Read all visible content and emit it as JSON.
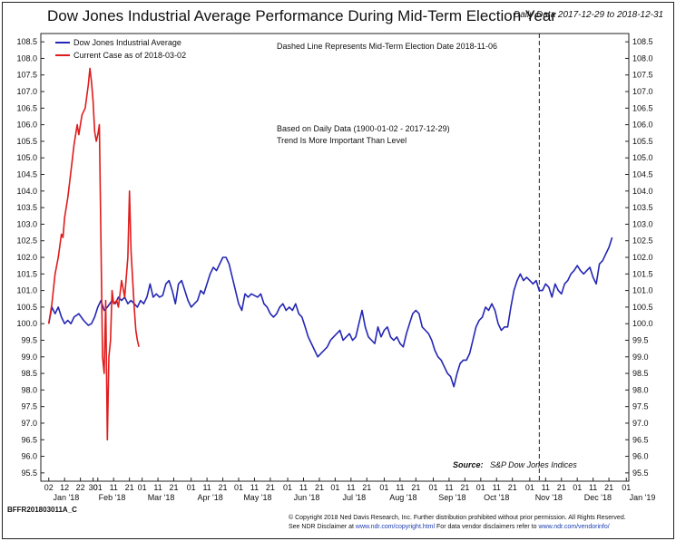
{
  "header": {
    "title": "Dow Jones Industrial Average Performance During Mid-Term Election Year",
    "date_range": "Daily Data 2017-12-29 to 2018-12-31"
  },
  "footer": {
    "code": "BFFR201803011A_C",
    "copyright": "© Copyright 2018 Ned Davis Research, Inc. Further distribution prohibited without prior permission. All Rights Reserved.",
    "disclaimer_prefix": "See NDR Disclaimer at ",
    "disclaimer_link": "www.ndr.com/copyright.html",
    "vendor_prefix": "  For data vendor disclaimers refer to ",
    "vendor_link": "www.ndr.com/vendorinfo/"
  },
  "chart_data": {
    "type": "line",
    "title": "Dow Jones Industrial Average Performance During Mid-Term Election Year",
    "ylim": [
      95.25,
      108.75
    ],
    "y_ticks": [
      95.5,
      96.0,
      96.5,
      97.0,
      97.5,
      98.0,
      98.5,
      99.0,
      99.5,
      100.0,
      100.5,
      101.0,
      101.5,
      102.0,
      102.5,
      103.0,
      103.5,
      104.0,
      104.5,
      105.0,
      105.5,
      106.0,
      106.5,
      107.0,
      107.5,
      108.0,
      108.5
    ],
    "x_range_days": [
      0,
      367
    ],
    "day_ticks": [
      {
        "d": 1,
        "label": "02"
      },
      {
        "d": 11,
        "label": "12"
      },
      {
        "d": 21,
        "label": "22"
      },
      {
        "d": 29,
        "label": "30"
      },
      {
        "d": 32,
        "label": "01"
      },
      {
        "d": 42,
        "label": "11"
      },
      {
        "d": 52,
        "label": "21"
      },
      {
        "d": 60,
        "label": "01"
      },
      {
        "d": 70,
        "label": "11"
      },
      {
        "d": 80,
        "label": "21"
      },
      {
        "d": 91,
        "label": "01"
      },
      {
        "d": 101,
        "label": "11"
      },
      {
        "d": 111,
        "label": "21"
      },
      {
        "d": 121,
        "label": "01"
      },
      {
        "d": 131,
        "label": "11"
      },
      {
        "d": 141,
        "label": "21"
      },
      {
        "d": 152,
        "label": "01"
      },
      {
        "d": 162,
        "label": "11"
      },
      {
        "d": 172,
        "label": "21"
      },
      {
        "d": 182,
        "label": "01"
      },
      {
        "d": 192,
        "label": "11"
      },
      {
        "d": 202,
        "label": "21"
      },
      {
        "d": 213,
        "label": "01"
      },
      {
        "d": 223,
        "label": "11"
      },
      {
        "d": 233,
        "label": "21"
      },
      {
        "d": 244,
        "label": "01"
      },
      {
        "d": 254,
        "label": "11"
      },
      {
        "d": 264,
        "label": "21"
      },
      {
        "d": 274,
        "label": "01"
      },
      {
        "d": 284,
        "label": "11"
      },
      {
        "d": 294,
        "label": "21"
      },
      {
        "d": 305,
        "label": "01"
      },
      {
        "d": 315,
        "label": "11"
      },
      {
        "d": 325,
        "label": "21"
      },
      {
        "d": 335,
        "label": "01"
      },
      {
        "d": 345,
        "label": "11"
      },
      {
        "d": 355,
        "label": "21"
      },
      {
        "d": 366,
        "label": "01"
      }
    ],
    "day_ticks_text": "02 12 22 30 01 11 21 01 11 21 01 11 21 01 11 21 01 11 21 01 11 21 01 11 21 01 11 21 01 11 21 01 11 21 01 11 21 01",
    "month_labels": [
      {
        "d": 12,
        "label": "Jan '18"
      },
      {
        "d": 41,
        "label": "Feb '18"
      },
      {
        "d": 72,
        "label": "Mar '18"
      },
      {
        "d": 103,
        "label": "Apr '18"
      },
      {
        "d": 133,
        "label": "May '18"
      },
      {
        "d": 164,
        "label": "Jun '18"
      },
      {
        "d": 194,
        "label": "Jul '18"
      },
      {
        "d": 225,
        "label": "Aug '18"
      },
      {
        "d": 256,
        "label": "Sep '18"
      },
      {
        "d": 284,
        "label": "Oct '18"
      },
      {
        "d": 317,
        "label": "Nov '18"
      },
      {
        "d": 348,
        "label": "Dec '18"
      },
      {
        "d": 379,
        "label": "Jan '19"
      }
    ],
    "month_labels_text": "Jan '18 Feb '18 Mar '18 Apr '18 May '18 Jun '18 Jul '18 Aug '18 Sep '18 Oct '18 Nov '18 Dec '18 Jan '19",
    "series": [
      {
        "name": "Dow Jones Industrial Average",
        "color": "#2426b4",
        "points": [
          [
            1,
            100.0
          ],
          [
            3,
            100.5
          ],
          [
            5,
            100.3
          ],
          [
            7,
            100.5
          ],
          [
            9,
            100.2
          ],
          [
            11,
            100.0
          ],
          [
            13,
            100.1
          ],
          [
            15,
            100.0
          ],
          [
            17,
            100.2
          ],
          [
            20,
            100.3
          ],
          [
            23,
            100.1
          ],
          [
            26,
            99.95
          ],
          [
            28,
            100.0
          ],
          [
            30,
            100.2
          ],
          [
            32,
            100.5
          ],
          [
            34,
            100.7
          ],
          [
            36,
            100.4
          ],
          [
            38,
            100.5
          ],
          [
            41,
            100.7
          ],
          [
            43,
            100.6
          ],
          [
            45,
            100.8
          ],
          [
            47,
            100.7
          ],
          [
            49,
            100.8
          ],
          [
            51,
            100.6
          ],
          [
            53,
            100.7
          ],
          [
            55,
            100.6
          ],
          [
            57,
            100.5
          ],
          [
            59,
            100.7
          ],
          [
            61,
            100.6
          ],
          [
            63,
            100.8
          ],
          [
            65,
            101.2
          ],
          [
            67,
            100.8
          ],
          [
            69,
            100.9
          ],
          [
            71,
            100.8
          ],
          [
            73,
            100.85
          ],
          [
            75,
            101.2
          ],
          [
            77,
            101.3
          ],
          [
            79,
            101.0
          ],
          [
            81,
            100.6
          ],
          [
            83,
            101.2
          ],
          [
            85,
            101.3
          ],
          [
            87,
            101.0
          ],
          [
            89,
            100.7
          ],
          [
            91,
            100.5
          ],
          [
            93,
            100.6
          ],
          [
            95,
            100.7
          ],
          [
            97,
            101.0
          ],
          [
            99,
            100.9
          ],
          [
            101,
            101.2
          ],
          [
            103,
            101.5
          ],
          [
            105,
            101.7
          ],
          [
            107,
            101.6
          ],
          [
            109,
            101.8
          ],
          [
            111,
            102.0
          ],
          [
            113,
            102.0
          ],
          [
            115,
            101.8
          ],
          [
            117,
            101.4
          ],
          [
            119,
            101.0
          ],
          [
            121,
            100.6
          ],
          [
            123,
            100.4
          ],
          [
            125,
            100.9
          ],
          [
            127,
            100.8
          ],
          [
            129,
            100.9
          ],
          [
            131,
            100.85
          ],
          [
            133,
            100.8
          ],
          [
            135,
            100.9
          ],
          [
            137,
            100.6
          ],
          [
            139,
            100.5
          ],
          [
            141,
            100.3
          ],
          [
            143,
            100.2
          ],
          [
            145,
            100.3
          ],
          [
            147,
            100.5
          ],
          [
            149,
            100.6
          ],
          [
            151,
            100.4
          ],
          [
            153,
            100.5
          ],
          [
            155,
            100.4
          ],
          [
            157,
            100.6
          ],
          [
            159,
            100.3
          ],
          [
            161,
            100.2
          ],
          [
            163,
            99.9
          ],
          [
            165,
            99.6
          ],
          [
            167,
            99.4
          ],
          [
            169,
            99.2
          ],
          [
            171,
            99.0
          ],
          [
            173,
            99.1
          ],
          [
            175,
            99.2
          ],
          [
            177,
            99.3
          ],
          [
            179,
            99.5
          ],
          [
            181,
            99.6
          ],
          [
            183,
            99.7
          ],
          [
            185,
            99.8
          ],
          [
            187,
            99.5
          ],
          [
            189,
            99.6
          ],
          [
            191,
            99.7
          ],
          [
            193,
            99.5
          ],
          [
            195,
            99.6
          ],
          [
            197,
            100.0
          ],
          [
            199,
            100.4
          ],
          [
            201,
            99.9
          ],
          [
            203,
            99.6
          ],
          [
            205,
            99.5
          ],
          [
            207,
            99.4
          ],
          [
            209,
            99.9
          ],
          [
            211,
            99.6
          ],
          [
            213,
            99.8
          ],
          [
            215,
            99.9
          ],
          [
            217,
            99.6
          ],
          [
            219,
            99.5
          ],
          [
            221,
            99.6
          ],
          [
            223,
            99.4
          ],
          [
            225,
            99.3
          ],
          [
            227,
            99.7
          ],
          [
            229,
            100.0
          ],
          [
            231,
            100.3
          ],
          [
            233,
            100.4
          ],
          [
            235,
            100.3
          ],
          [
            237,
            99.9
          ],
          [
            239,
            99.8
          ],
          [
            241,
            99.7
          ],
          [
            243,
            99.5
          ],
          [
            245,
            99.2
          ],
          [
            247,
            99.0
          ],
          [
            249,
            98.9
          ],
          [
            251,
            98.7
          ],
          [
            253,
            98.5
          ],
          [
            255,
            98.4
          ],
          [
            257,
            98.1
          ],
          [
            259,
            98.5
          ],
          [
            261,
            98.8
          ],
          [
            263,
            98.9
          ],
          [
            265,
            98.9
          ],
          [
            267,
            99.1
          ],
          [
            269,
            99.5
          ],
          [
            271,
            99.9
          ],
          [
            273,
            100.1
          ],
          [
            275,
            100.2
          ],
          [
            277,
            100.5
          ],
          [
            279,
            100.4
          ],
          [
            281,
            100.6
          ],
          [
            283,
            100.4
          ],
          [
            285,
            100.0
          ],
          [
            287,
            99.8
          ],
          [
            289,
            99.9
          ],
          [
            291,
            99.9
          ],
          [
            293,
            100.5
          ],
          [
            295,
            101.0
          ],
          [
            297,
            101.3
          ],
          [
            299,
            101.5
          ],
          [
            301,
            101.3
          ],
          [
            303,
            101.4
          ],
          [
            305,
            101.3
          ],
          [
            307,
            101.2
          ],
          [
            309,
            101.3
          ],
          [
            311,
            101.0
          ],
          [
            313,
            101.0
          ],
          [
            315,
            101.2
          ],
          [
            317,
            101.1
          ],
          [
            319,
            100.8
          ],
          [
            321,
            101.2
          ],
          [
            323,
            101.0
          ],
          [
            325,
            100.9
          ],
          [
            327,
            101.2
          ],
          [
            329,
            101.3
          ],
          [
            331,
            101.5
          ],
          [
            333,
            101.6
          ],
          [
            335,
            101.75
          ],
          [
            337,
            101.6
          ],
          [
            339,
            101.5
          ],
          [
            341,
            101.6
          ],
          [
            343,
            101.7
          ],
          [
            345,
            101.4
          ],
          [
            347,
            101.2
          ],
          [
            349,
            101.8
          ],
          [
            351,
            101.9
          ],
          [
            353,
            102.1
          ],
          [
            355,
            102.3
          ],
          [
            357,
            102.6
          ]
        ]
      },
      {
        "name": "Current Case as of 2018-03-02",
        "color": "#e01b1b",
        "points": [
          [
            1,
            100.0
          ],
          [
            3,
            100.6
          ],
          [
            5,
            101.5
          ],
          [
            7,
            102.0
          ],
          [
            9,
            102.7
          ],
          [
            10,
            102.6
          ],
          [
            11,
            103.2
          ],
          [
            13,
            103.8
          ],
          [
            15,
            104.6
          ],
          [
            17,
            105.4
          ],
          [
            19,
            106.0
          ],
          [
            20,
            105.7
          ],
          [
            21,
            106.0
          ],
          [
            22,
            106.3
          ],
          [
            24,
            106.5
          ],
          [
            26,
            107.2
          ],
          [
            27,
            107.7
          ],
          [
            28,
            107.3
          ],
          [
            29,
            106.7
          ],
          [
            30,
            105.8
          ],
          [
            31,
            105.5
          ],
          [
            32,
            105.7
          ],
          [
            33,
            106.0
          ],
          [
            35,
            99.0
          ],
          [
            36,
            98.5
          ],
          [
            37,
            100.7
          ],
          [
            38,
            96.5
          ],
          [
            39,
            99.0
          ],
          [
            40,
            99.5
          ],
          [
            41,
            101.0
          ],
          [
            42,
            100.6
          ],
          [
            44,
            100.7
          ],
          [
            45,
            100.5
          ],
          [
            47,
            101.3
          ],
          [
            49,
            100.8
          ],
          [
            51,
            102.0
          ],
          [
            52,
            104.0
          ],
          [
            53,
            102.2
          ],
          [
            55,
            100.5
          ],
          [
            56,
            99.8
          ],
          [
            57,
            99.5
          ],
          [
            58,
            99.3
          ]
        ]
      }
    ],
    "legend": [
      {
        "label": "Dow Jones Industrial Average",
        "color": "#2426b4"
      },
      {
        "label": "Current Case as of 2018-03-02",
        "color": "#e01b1b"
      }
    ],
    "election_date_day": 311,
    "annotations": {
      "dashed_line": "Dashed Line Represents Mid-Term Election Date 2018-11-06",
      "basis": "Based on Daily Data (1900-01-02 - 2017-12-29)",
      "trend": "Trend Is More Important Than Level",
      "source_label": "Source:",
      "source_text": "S&P Dow Jones Indices"
    }
  }
}
